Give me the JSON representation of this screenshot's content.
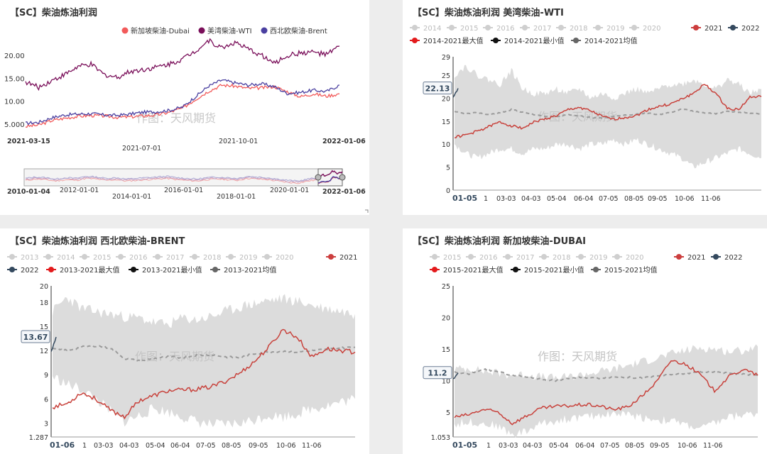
{
  "chart_data": [
    {
      "type": "line",
      "title": "【SC】柴油炼油利润",
      "legend": [
        "新加坡柴油-Dubai",
        "美湾柴油-WTI",
        "西北欧柴油-Brent"
      ],
      "colors": {
        "dubai": "#f25a5a",
        "wti": "#7a0f5a",
        "brent": "#4a3fa0"
      },
      "ylim": [
        3,
        24
      ],
      "yticks": [
        "5.000",
        "10.00",
        "15.00",
        "20.00"
      ],
      "xticks_main": [
        "2021-03-15",
        "2021-07-01",
        "2021-10-01",
        "2022-01-06"
      ],
      "xticks_nav": [
        "2010-01-04",
        "2012-01-01",
        "2014-01-01",
        "2016-01-01",
        "2018-01-01",
        "2020-01-01",
        "2022-01-06"
      ],
      "series_keys": [
        {
          "name": "新加坡柴油-Dubai",
          "key": "dubai",
          "values": [
            4.5,
            4.8,
            5.8,
            6.3,
            6.7,
            6.9,
            6.8,
            6.5,
            6.6,
            6.8,
            7.0,
            7.6,
            8.5,
            10.4,
            12.2,
            13.5,
            13.3,
            12.8,
            12.9,
            13.2,
            12.1,
            11.0,
            11.6,
            11.1,
            11.6
          ]
        },
        {
          "name": "美湾柴油-WTI",
          "key": "wti",
          "values": [
            14.2,
            13.0,
            14.5,
            15.8,
            17.5,
            18.0,
            15.8,
            15.2,
            16.5,
            16.9,
            17.4,
            18.1,
            19.2,
            21.0,
            23.2,
            21.6,
            22.8,
            21.3,
            20.1,
            18.2,
            19.9,
            20.5,
            20.7,
            20.1,
            22.0
          ]
        },
        {
          "name": "西北欧柴油-Brent",
          "key": "brent",
          "values": [
            5.2,
            5.4,
            6.4,
            7.0,
            7.2,
            7.3,
            7.0,
            6.9,
            7.2,
            7.6,
            7.7,
            8.0,
            8.7,
            11.0,
            13.3,
            14.6,
            14.0,
            13.5,
            13.8,
            13.2,
            11.7,
            11.9,
            12.4,
            12.1,
            13.5
          ]
        }
      ]
    },
    {
      "type": "area",
      "title": "【SC】柴油炼油利润 美湾柴油-WTI",
      "legend_years": [
        "2014",
        "2015",
        "2016",
        "2017",
        "2018",
        "2019",
        "2020",
        "2021",
        "2022"
      ],
      "legend_stats": [
        "2014-2021最大值",
        "2014-2021最小值",
        "2014-2021均值"
      ],
      "ylim": [
        0,
        29
      ],
      "yticks": [
        "0",
        "5",
        "10",
        "15",
        "20",
        "25",
        "29"
      ],
      "xticks": [
        "01-05",
        "1",
        "03-03",
        "04-03",
        "05-04",
        "06-04",
        "07-05",
        "08-05",
        "09-05",
        "10-06",
        "11-06"
      ],
      "last_value_label": "22.13",
      "watermark": "作图：天风期货",
      "max_band": [
        25,
        27,
        25,
        24,
        23,
        26,
        22,
        21,
        21,
        22,
        21,
        22,
        20,
        21,
        20,
        21,
        22,
        21,
        22,
        23,
        23,
        24,
        23,
        22,
        24,
        23,
        21,
        22
      ],
      "min_band": [
        10,
        8,
        7,
        8,
        9,
        9,
        8,
        9,
        9,
        10,
        10,
        9,
        10,
        10,
        11,
        10,
        11,
        10,
        9,
        8,
        7,
        5,
        6,
        7,
        8,
        9,
        8,
        7
      ],
      "mean": [
        17.0,
        16.6,
        16.8,
        16.4,
        16.8,
        17.5,
        17.0,
        16.4,
        16.0,
        16.0,
        16.5,
        16.1,
        15.8,
        15.6,
        16.0,
        16.3,
        16.5,
        16.8,
        16.4,
        16.9,
        17.6,
        17.2,
        16.8,
        16.6,
        17.1,
        16.9,
        16.8,
        16.6
      ],
      "current_2021": [
        11.5,
        12.0,
        12.8,
        13.8,
        14.8,
        14.0,
        13.5,
        14.8,
        15.5,
        16.2,
        17.5,
        18.0,
        17.2,
        16.0,
        15.4,
        15.8,
        16.2,
        17.5,
        18.2,
        18.7,
        19.8,
        21.0,
        23.0,
        21.0,
        17.8,
        17.5,
        20.2,
        20.3
      ],
      "current_2022": [
        20.1,
        22.13
      ]
    },
    {
      "type": "area",
      "title": "【SC】柴油炼油利润 西北欧柴油-BRENT",
      "legend_years": [
        "2013",
        "2014",
        "2015",
        "2016",
        "2017",
        "2018",
        "2019",
        "2020",
        "2021",
        "2022"
      ],
      "legend_stats": [
        "2013-2021最大值",
        "2013-2021最小值",
        "2013-2021均值"
      ],
      "ylim": [
        1.287,
        20
      ],
      "yticks": [
        "1.287",
        "3",
        "6",
        "9",
        "12",
        "15",
        "18",
        "20"
      ],
      "xticks": [
        "01-06",
        "1",
        "03-03",
        "04-03",
        "05-04",
        "06-04",
        "07-05",
        "08-05",
        "09-05",
        "10-06",
        "11-06"
      ],
      "last_value_label": "13.67",
      "watermark": "作图：天风期货",
      "max_band": [
        16.8,
        18.6,
        17.2,
        16.8,
        16.5,
        16.2,
        16.0,
        15.5,
        15.2,
        16.0,
        15.8,
        16.2,
        16.8,
        17.4,
        17.8,
        18.2,
        18.4,
        18.1,
        17.6,
        17.2,
        16.9,
        16.5
      ],
      "min_band": [
        8.8,
        7.8,
        7.2,
        6.0,
        4.5,
        3.2,
        3.9,
        4.8,
        4.4,
        3.8,
        3.2,
        2.8,
        2.8,
        3.0,
        3.4,
        4.0,
        3.8,
        4.2,
        4.8,
        5.2,
        5.6,
        6.0
      ],
      "mean": [
        12.2,
        12.0,
        12.4,
        12.6,
        12.3,
        11.0,
        10.7,
        11.0,
        11.2,
        11.1,
        11.4,
        11.5,
        11.2,
        11.1,
        11.6,
        11.8,
        11.9,
        11.8,
        12.0,
        12.1,
        12.3,
        12.4
      ],
      "current_2021": [
        5.0,
        5.4,
        6.8,
        6.0,
        4.6,
        3.8,
        5.8,
        6.4,
        7.0,
        7.1,
        7.2,
        7.5,
        8.2,
        9.2,
        10.6,
        12.4,
        14.6,
        13.6,
        11.2,
        12.2,
        12.0,
        11.8
      ],
      "current_2022": [
        11.8,
        13.67
      ]
    },
    {
      "type": "area",
      "title": "【SC】柴油炼油利润 新加坡柴油-DUBAI",
      "legend_years": [
        "2015",
        "2016",
        "2017",
        "2018",
        "2019",
        "2020",
        "2021",
        "2022"
      ],
      "legend_stats": [
        "2015-2021最大值",
        "2015-2021最小值",
        "2015-2021均值"
      ],
      "ylim": [
        1.053,
        25
      ],
      "yticks": [
        "1.053",
        "5",
        "10",
        "15",
        "20",
        "25"
      ],
      "xticks": [
        "01-05",
        "1",
        "03-03",
        "04-03",
        "05-04",
        "06-04",
        "07-05",
        "08-05",
        "09-05",
        "10-06",
        "11-06"
      ],
      "last_value_label": "11.2",
      "watermark": "作图：天风期货",
      "max_band": [
        11.8,
        12.0,
        11.5,
        11.2,
        10.8,
        11.0,
        10.6,
        10.4,
        10.6,
        11.0,
        11.4,
        11.8,
        12.4,
        13.0,
        13.6,
        14.2,
        14.8,
        15.2,
        15.0,
        14.6,
        14.8,
        15.4
      ],
      "min_band": [
        3.0,
        3.5,
        3.2,
        2.8,
        1.4,
        2.0,
        3.2,
        3.6,
        4.0,
        4.2,
        4.5,
        4.8,
        4.6,
        4.2,
        3.8,
        3.6,
        3.0,
        2.4,
        3.2,
        4.2,
        4.6,
        4.8
      ],
      "mean": [
        11.3,
        11.0,
        11.8,
        11.4,
        10.8,
        10.6,
        10.2,
        10.0,
        10.4,
        10.5,
        10.4,
        10.6,
        10.5,
        10.4,
        10.7,
        10.9,
        11.1,
        11.4,
        11.3,
        11.2,
        11.0,
        10.9
      ],
      "current_2021": [
        4.2,
        4.6,
        5.4,
        5.0,
        3.2,
        4.4,
        5.6,
        5.9,
        6.0,
        6.2,
        6.0,
        5.4,
        5.8,
        7.6,
        9.8,
        13.2,
        12.6,
        11.0,
        8.4,
        10.6,
        11.8,
        10.8
      ],
      "current_2022": [
        10.2,
        11.2
      ]
    }
  ]
}
